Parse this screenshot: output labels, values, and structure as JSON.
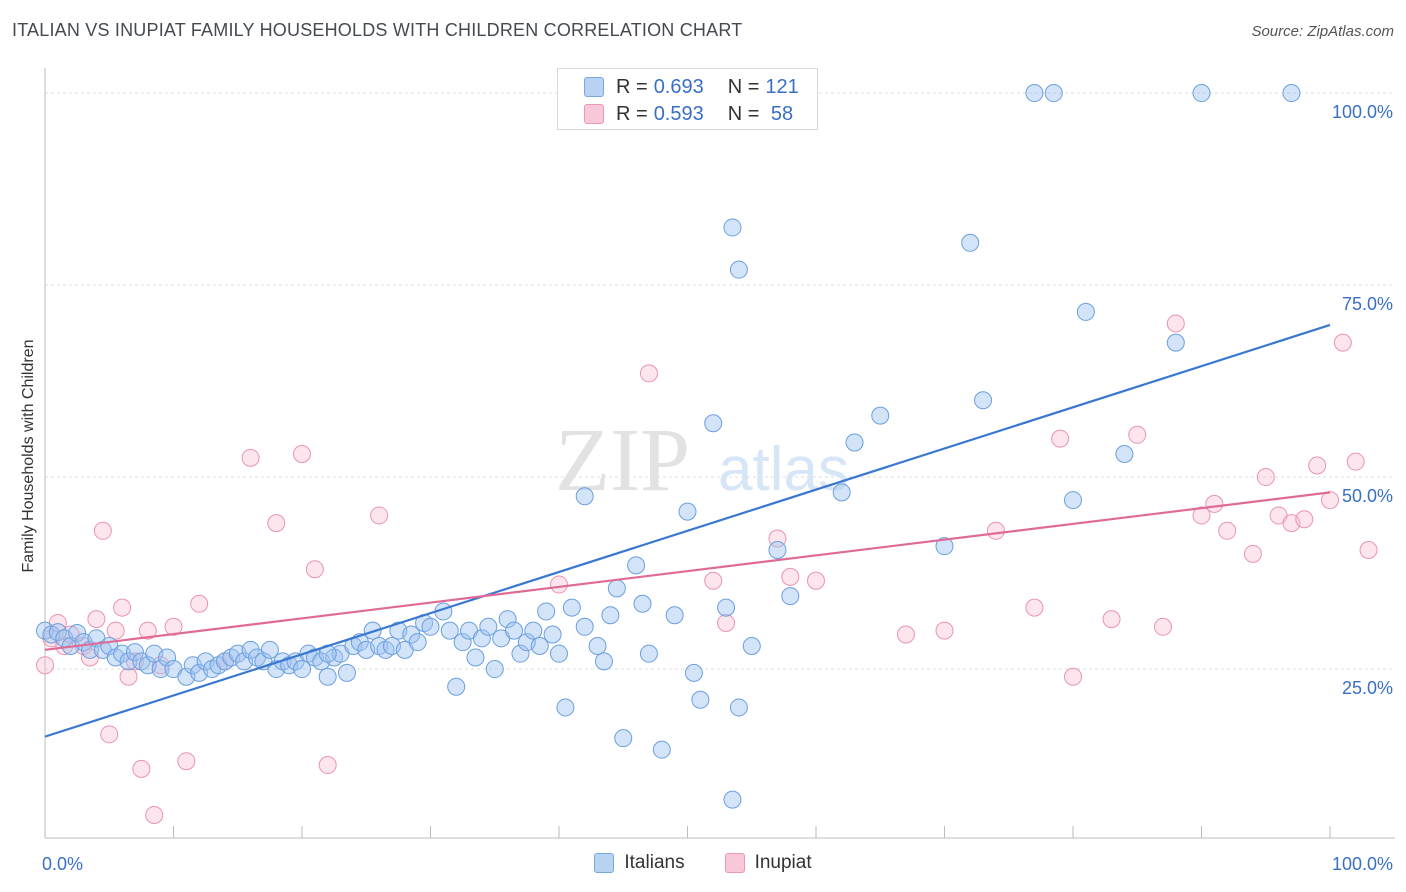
{
  "title": "ITALIAN VS INUPIAT FAMILY HOUSEHOLDS WITH CHILDREN CORRELATION CHART",
  "source": "Source: ZipAtlas.com",
  "watermark": {
    "zip": "ZIP",
    "atlas": "atlas"
  },
  "legend_stats": [
    {
      "series": "Italians",
      "r_label": "R =",
      "r_value": "0.693",
      "n_label": "N =",
      "n_value": "121"
    },
    {
      "series": "Inupiat",
      "r_label": "R =",
      "r_value": "0.593",
      "n_label": "N =",
      "n_value": " 58"
    }
  ],
  "chart_data": {
    "type": "scatter",
    "title": "ITALIAN VS INUPIAT FAMILY HOUSEHOLDS WITH CHILDREN CORRELATION CHART",
    "xlabel": "",
    "ylabel": "Family Households with Children",
    "xlim": [
      0,
      100
    ],
    "ylim": [
      3,
      103
    ],
    "x_tick_labels": [
      "0.0%",
      "100.0%"
    ],
    "y_tick_values": [
      25,
      50,
      75,
      100
    ],
    "y_tick_labels": [
      "25.0%",
      "50.0%",
      "75.0%",
      "100.0%"
    ],
    "grid": true,
    "legend": "bottom-center",
    "colors": {
      "Italians": "#3a77d0",
      "Inupiat": "#e06a96"
    },
    "series": [
      {
        "name": "Italians",
        "r": 0.693,
        "n": 121,
        "trend": [
          [
            0,
            16.2
          ],
          [
            100,
            69.8
          ]
        ],
        "points": [
          [
            0,
            30
          ],
          [
            0.5,
            29.5
          ],
          [
            1,
            29.8
          ],
          [
            1.5,
            29
          ],
          [
            2,
            28
          ],
          [
            2.5,
            29.7
          ],
          [
            3,
            28.5
          ],
          [
            3.5,
            27.5
          ],
          [
            4,
            29
          ],
          [
            4.5,
            27.5
          ],
          [
            5,
            28
          ],
          [
            5.5,
            26.5
          ],
          [
            6,
            27
          ],
          [
            6.5,
            26
          ],
          [
            7,
            27.2
          ],
          [
            7.5,
            26
          ],
          [
            8,
            25.5
          ],
          [
            8.5,
            27
          ],
          [
            9,
            25
          ],
          [
            9.5,
            26.5
          ],
          [
            10,
            25
          ],
          [
            11,
            24
          ],
          [
            11.5,
            25.5
          ],
          [
            12,
            24.5
          ],
          [
            12.5,
            26
          ],
          [
            13,
            25
          ],
          [
            13.5,
            25.5
          ],
          [
            14,
            26
          ],
          [
            14.5,
            26.5
          ],
          [
            15,
            27
          ],
          [
            15.5,
            26
          ],
          [
            16,
            27.5
          ],
          [
            16.5,
            26.5
          ],
          [
            17,
            26
          ],
          [
            17.5,
            27.5
          ],
          [
            18,
            25
          ],
          [
            18.5,
            26
          ],
          [
            19,
            25.5
          ],
          [
            19.5,
            26
          ],
          [
            20,
            25
          ],
          [
            20.5,
            27
          ],
          [
            21,
            26.5
          ],
          [
            21.5,
            26
          ],
          [
            22,
            24
          ],
          [
            22.5,
            26.5
          ],
          [
            23,
            27
          ],
          [
            23.5,
            24.5
          ],
          [
            24,
            28
          ],
          [
            24.5,
            28.5
          ],
          [
            25,
            27.5
          ],
          [
            25.5,
            30
          ],
          [
            26,
            28
          ],
          [
            26.5,
            27.5
          ],
          [
            27,
            28
          ],
          [
            27.5,
            30
          ],
          [
            28,
            27.5
          ],
          [
            28.5,
            29.5
          ],
          [
            29,
            28.5
          ],
          [
            29.5,
            31
          ],
          [
            30,
            30.5
          ],
          [
            31,
            32.5
          ],
          [
            31.5,
            30
          ],
          [
            32,
            22.7
          ],
          [
            32.5,
            28.5
          ],
          [
            33,
            30
          ],
          [
            33.5,
            26.5
          ],
          [
            34,
            29
          ],
          [
            34.5,
            30.5
          ],
          [
            35,
            25
          ],
          [
            35.5,
            29
          ],
          [
            36,
            31.5
          ],
          [
            36.5,
            30
          ],
          [
            37,
            27
          ],
          [
            37.5,
            28.5
          ],
          [
            38,
            30
          ],
          [
            38.5,
            28
          ],
          [
            39,
            32.5
          ],
          [
            39.5,
            29.5
          ],
          [
            40,
            27
          ],
          [
            40.5,
            20
          ],
          [
            41,
            33
          ],
          [
            42,
            30.5
          ],
          [
            43,
            28
          ],
          [
            43.5,
            26
          ],
          [
            44,
            32
          ],
          [
            44.5,
            35.5
          ],
          [
            45,
            16
          ],
          [
            46,
            38.5
          ],
          [
            46.5,
            33.5
          ],
          [
            47,
            27
          ],
          [
            48,
            14.5
          ],
          [
            49,
            32
          ],
          [
            50,
            45.5
          ],
          [
            50.5,
            24.5
          ],
          [
            51,
            21
          ],
          [
            52,
            57
          ],
          [
            53,
            33
          ],
          [
            53.5,
            82.5
          ],
          [
            54,
            20
          ],
          [
            55,
            28
          ],
          [
            57,
            40.5
          ],
          [
            58,
            34.5
          ],
          [
            62,
            48
          ],
          [
            63,
            54.5
          ],
          [
            65,
            58
          ],
          [
            70,
            41
          ],
          [
            72,
            80.5
          ],
          [
            73,
            60
          ],
          [
            77,
            100
          ],
          [
            78.5,
            100
          ],
          [
            80,
            47
          ],
          [
            81,
            71.5
          ],
          [
            84,
            53
          ],
          [
            88,
            67.5
          ],
          [
            90,
            100
          ],
          [
            97,
            100
          ],
          [
            53.5,
            8
          ],
          [
            54,
            77
          ],
          [
            42,
            47.5
          ],
          [
            22,
            27
          ]
        ]
      },
      {
        "name": "Inupiat",
        "r": 0.593,
        "n": 58,
        "trend": [
          [
            0,
            27.5
          ],
          [
            100,
            48
          ]
        ],
        "points": [
          [
            0,
            25.5
          ],
          [
            0.5,
            29
          ],
          [
            1,
            31
          ],
          [
            1.5,
            28
          ],
          [
            2,
            29.5
          ],
          [
            3,
            28
          ],
          [
            3.5,
            26.5
          ],
          [
            4,
            31.5
          ],
          [
            4.5,
            43
          ],
          [
            5,
            16.5
          ],
          [
            5.5,
            30
          ],
          [
            6,
            33
          ],
          [
            6.5,
            24
          ],
          [
            7,
            26
          ],
          [
            7.5,
            12
          ],
          [
            8,
            30
          ],
          [
            8.5,
            6
          ],
          [
            9,
            25.5
          ],
          [
            10,
            30.5
          ],
          [
            11,
            13
          ],
          [
            12,
            33.5
          ],
          [
            14,
            26
          ],
          [
            16,
            52.5
          ],
          [
            18,
            44
          ],
          [
            20,
            53
          ],
          [
            21,
            38
          ],
          [
            22,
            12.5
          ],
          [
            26,
            45
          ],
          [
            40,
            36
          ],
          [
            47,
            63.5
          ],
          [
            52,
            36.5
          ],
          [
            53,
            31
          ],
          [
            57,
            42
          ],
          [
            58,
            37
          ],
          [
            60,
            36.5
          ],
          [
            67,
            29.5
          ],
          [
            70,
            30
          ],
          [
            74,
            43
          ],
          [
            77,
            33
          ],
          [
            79,
            55
          ],
          [
            80,
            24
          ],
          [
            83,
            31.5
          ],
          [
            85,
            55.5
          ],
          [
            87,
            30.5
          ],
          [
            88,
            70
          ],
          [
            90,
            45
          ],
          [
            91,
            46.5
          ],
          [
            92,
            43
          ],
          [
            94,
            40
          ],
          [
            95,
            50
          ],
          [
            96,
            45
          ],
          [
            97,
            44
          ],
          [
            98,
            44.5
          ],
          [
            99,
            51.5
          ],
          [
            100,
            47
          ],
          [
            101,
            67.5
          ],
          [
            102,
            52
          ],
          [
            103,
            40.5
          ]
        ]
      }
    ]
  }
}
